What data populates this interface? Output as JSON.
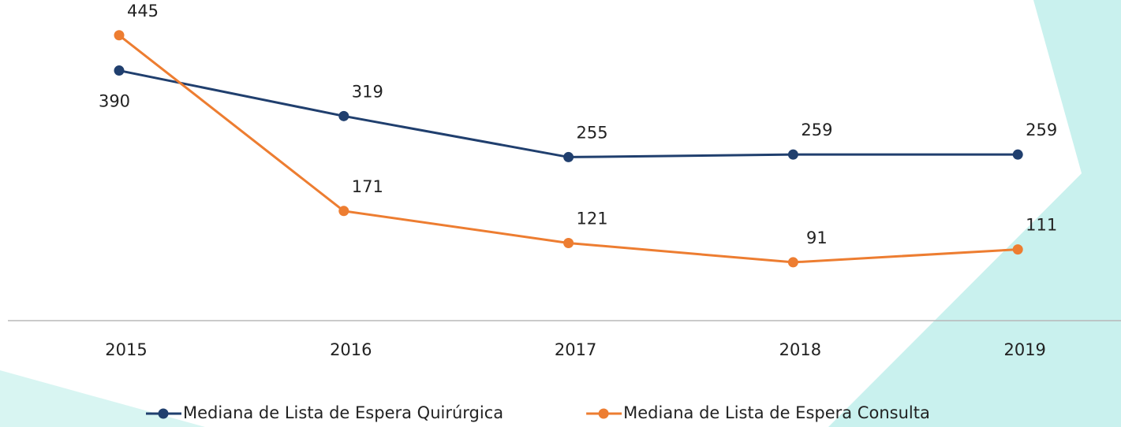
{
  "chart_data": {
    "type": "line",
    "categories": [
      "2015",
      "2016",
      "2017",
      "2018",
      "2019"
    ],
    "series": [
      {
        "name": "Mediana de Lista de Espera Quirúrgica",
        "color": "#203f6e",
        "values": [
          390,
          319,
          255,
          259,
          259
        ]
      },
      {
        "name": "Mediana de Lista de Espera Consulta",
        "color": "#ed7d31",
        "values": [
          445,
          171,
          121,
          91,
          111
        ]
      }
    ],
    "ylim": [
      0,
      500
    ]
  }
}
